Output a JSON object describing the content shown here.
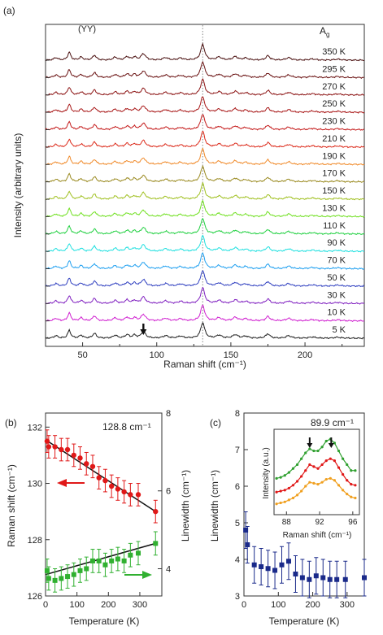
{
  "chart_data": [
    {
      "panel": "(a)",
      "type": "line",
      "annotation_left": "(YY)",
      "annotation_right": "Ag",
      "xlabel": "Raman shift (cm⁻¹)",
      "ylabel": "Intensity (arbitrary units)",
      "xlim": [
        25,
        240
      ],
      "x_ticks": [
        50,
        100,
        150,
        200
      ],
      "dotted_line_x": 131,
      "arrow_x": 91,
      "grid": false,
      "peaks": [
        {
          "x": 32,
          "amp": 0.25,
          "w": 1.5
        },
        {
          "x": 41,
          "amp": 0.8,
          "w": 1.2
        },
        {
          "x": 49,
          "amp": 0.3,
          "w": 1.4
        },
        {
          "x": 58,
          "amp": 0.5,
          "w": 1.4
        },
        {
          "x": 72,
          "amp": 0.3,
          "w": 1.6
        },
        {
          "x": 80,
          "amp": 0.35,
          "w": 1.6
        },
        {
          "x": 85,
          "amp": 0.3,
          "w": 1.4
        },
        {
          "x": 91,
          "amp": 0.65,
          "w": 1.8
        },
        {
          "x": 106,
          "amp": 0.25,
          "w": 2.0
        },
        {
          "x": 116,
          "amp": 0.2,
          "w": 2.0
        },
        {
          "x": 131,
          "amp": 1.6,
          "w": 1.6
        },
        {
          "x": 142,
          "amp": 0.3,
          "w": 2.0
        },
        {
          "x": 153,
          "amp": 0.35,
          "w": 2.0
        },
        {
          "x": 160,
          "amp": 0.2,
          "w": 2.0
        },
        {
          "x": 175,
          "amp": 0.45,
          "w": 1.6
        },
        {
          "x": 189,
          "amp": 0.25,
          "w": 2.0
        },
        {
          "x": 205,
          "amp": 0.12,
          "w": 2.5
        },
        {
          "x": 222,
          "amp": 0.1,
          "w": 2.5
        }
      ],
      "series": [
        {
          "name": "350 K",
          "color": "#4a1010"
        },
        {
          "name": "295 K",
          "color": "#6a1212"
        },
        {
          "name": "270 K",
          "color": "#8c1414"
        },
        {
          "name": "250 K",
          "color": "#a81616"
        },
        {
          "name": "230 K",
          "color": "#c41a1a"
        },
        {
          "name": "210 K",
          "color": "#dc2a1a"
        },
        {
          "name": "190 K",
          "color": "#f08a2a"
        },
        {
          "name": "170 K",
          "color": "#9a8a20"
        },
        {
          "name": "150 K",
          "color": "#a0c020"
        },
        {
          "name": "130 K",
          "color": "#70e020"
        },
        {
          "name": "110 K",
          "color": "#20d040"
        },
        {
          "name": "90 K",
          "color": "#20e0e0"
        },
        {
          "name": "70 K",
          "color": "#20a0f0"
        },
        {
          "name": "50 K",
          "color": "#3040c0"
        },
        {
          "name": "30 K",
          "color": "#8020c0"
        },
        {
          "name": "10 K",
          "color": "#d020d0"
        },
        {
          "name": "5 K",
          "color": "#202020"
        }
      ]
    },
    {
      "panel": "(b)",
      "type": "scatter",
      "annotation": "128.8 cm⁻¹",
      "xlabel": "Temperature (K)",
      "ylabel_left": "Raman shift (cm⁻¹)",
      "ylabel_right": "Linewidth (cm⁻¹)",
      "xlim": [
        0,
        370
      ],
      "x_ticks": [
        0,
        100,
        200,
        300
      ],
      "ylim_left": [
        126,
        132.5
      ],
      "y_ticks_left": [
        126,
        128,
        130,
        132
      ],
      "ylim_right": [
        3.3,
        8
      ],
      "y_ticks_right": [
        4,
        6,
        8
      ],
      "series": [
        {
          "name": "Raman shift",
          "axis": "left",
          "color": "#e01818",
          "marker": "circle",
          "x": [
            5,
            10,
            30,
            50,
            70,
            90,
            110,
            130,
            150,
            170,
            190,
            210,
            230,
            250,
            270,
            295,
            350
          ],
          "y": [
            131.5,
            131.3,
            131.3,
            131.2,
            131.2,
            131.0,
            130.9,
            130.7,
            130.6,
            130.2,
            130.1,
            129.9,
            129.8,
            129.7,
            129.6,
            129.6,
            129.0
          ],
          "err": [
            0.4,
            0.4,
            0.4,
            0.4,
            0.4,
            0.4,
            0.4,
            0.4,
            0.4,
            0.4,
            0.4,
            0.4,
            0.4,
            0.4,
            0.4,
            0.4,
            0.4
          ],
          "fit": [
            [
              0,
              131.55
            ],
            [
              350,
              129.0
            ]
          ]
        },
        {
          "name": "Linewidth",
          "axis": "right",
          "color": "#30b030",
          "marker": "square",
          "x": [
            5,
            10,
            30,
            50,
            70,
            90,
            110,
            130,
            150,
            170,
            190,
            210,
            230,
            250,
            270,
            295,
            350
          ],
          "y": [
            3.95,
            3.75,
            3.7,
            3.75,
            3.8,
            3.85,
            3.95,
            4.0,
            4.2,
            4.2,
            4.1,
            4.2,
            4.25,
            4.2,
            4.35,
            4.4,
            4.65
          ],
          "err": [
            0.3,
            0.3,
            0.3,
            0.3,
            0.3,
            0.3,
            0.3,
            0.3,
            0.3,
            0.3,
            0.3,
            0.3,
            0.3,
            0.3,
            0.3,
            0.3,
            0.3
          ],
          "fit": [
            [
              0,
              3.85
            ],
            [
              350,
              4.65
            ]
          ]
        }
      ]
    },
    {
      "panel": "(c)",
      "type": "scatter",
      "annotation": "89.9 cm⁻¹",
      "xlabel": "Temperature (K)",
      "ylabel": "Linewidth (cm⁻¹)",
      "xlim": [
        0,
        350
      ],
      "x_ticks": [
        0,
        100,
        200,
        300
      ],
      "ylim": [
        3,
        8
      ],
      "y_ticks": [
        3,
        4,
        5,
        6,
        7,
        8
      ],
      "series": [
        {
          "name": "Linewidth",
          "color": "#1a2a8a",
          "marker": "square",
          "x": [
            5,
            10,
            30,
            50,
            70,
            90,
            110,
            130,
            150,
            170,
            190,
            210,
            230,
            250,
            270,
            295,
            350
          ],
          "y": [
            4.8,
            4.4,
            3.85,
            3.8,
            3.75,
            3.7,
            3.85,
            3.95,
            3.6,
            3.5,
            3.45,
            3.55,
            3.5,
            3.45,
            3.45,
            3.45,
            3.5
          ],
          "err": [
            0.5,
            0.5,
            0.5,
            0.5,
            0.5,
            0.5,
            0.5,
            0.5,
            0.5,
            0.5,
            0.5,
            0.5,
            0.5,
            0.5,
            0.5,
            0.5,
            0.5
          ]
        }
      ],
      "inset": {
        "type": "line",
        "xlabel": "Raman shift (cm⁻¹)",
        "ylabel": "Intensity (a.u.)",
        "xlim": [
          86.5,
          96.8
        ],
        "x_ticks": [
          88,
          92,
          96
        ],
        "arrows_x": [
          90.8,
          93.4
        ],
        "series": [
          {
            "color": "#30a030",
            "x": [
              86.8,
              87.3,
              87.8,
              88.3,
              88.8,
              89.3,
              89.8,
              90.3,
              90.8,
              91.3,
              91.8,
              92.3,
              92.8,
              93.3,
              93.8,
              94.3,
              94.8,
              95.3,
              95.8,
              96.3
            ],
            "y": [
              0.52,
              0.53,
              0.55,
              0.58,
              0.62,
              0.66,
              0.72,
              0.78,
              0.82,
              0.8,
              0.8,
              0.84,
              0.9,
              0.92,
              0.88,
              0.8,
              0.72,
              0.66,
              0.6,
              0.6
            ]
          },
          {
            "color": "#e01818",
            "x": [
              86.8,
              87.3,
              87.8,
              88.3,
              88.8,
              89.3,
              89.8,
              90.3,
              90.8,
              91.3,
              91.8,
              92.3,
              92.8,
              93.3,
              93.8,
              94.3,
              94.8,
              95.3,
              95.8,
              96.3
            ],
            "y": [
              0.38,
              0.39,
              0.4,
              0.42,
              0.45,
              0.49,
              0.54,
              0.6,
              0.66,
              0.64,
              0.62,
              0.66,
              0.7,
              0.72,
              0.7,
              0.63,
              0.56,
              0.5,
              0.46,
              0.45
            ]
          },
          {
            "color": "#f0a020",
            "x": [
              86.8,
              87.3,
              87.8,
              88.3,
              88.8,
              89.3,
              89.8,
              90.3,
              90.8,
              91.3,
              91.8,
              92.3,
              92.8,
              93.3,
              93.8,
              94.3,
              94.8,
              95.3,
              95.8,
              96.3
            ],
            "y": [
              0.26,
              0.27,
              0.28,
              0.3,
              0.32,
              0.35,
              0.39,
              0.44,
              0.48,
              0.47,
              0.46,
              0.48,
              0.51,
              0.52,
              0.5,
              0.45,
              0.4,
              0.36,
              0.33,
              0.32
            ]
          }
        ]
      }
    }
  ]
}
